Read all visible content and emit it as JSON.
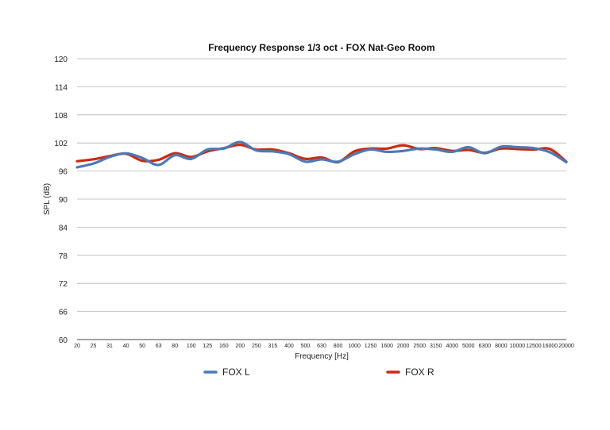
{
  "chart_data": {
    "type": "line",
    "title": "Frequency Response 1/3 oct - FOX Nat-Geo Room",
    "xlabel": "Frequency [Hz]",
    "ylabel": "SPL (dB)",
    "ylim": [
      60,
      120
    ],
    "yticks": [
      60,
      66,
      72,
      78,
      84,
      90,
      96,
      102,
      108,
      114,
      120
    ],
    "grid": true,
    "legend_position": "bottom",
    "x": [
      "20",
      "25",
      "31",
      "40",
      "50",
      "63",
      "80",
      "100",
      "125",
      "160",
      "200",
      "250",
      "315",
      "400",
      "500",
      "630",
      "800",
      "1000",
      "1250",
      "1600",
      "2000",
      "2500",
      "3150",
      "4000",
      "5000",
      "6300",
      "8000",
      "10000",
      "12500",
      "16000",
      "20000"
    ],
    "series": [
      {
        "name": "FOX L",
        "color": "#4a7ab7",
        "values": [
          96.8,
          97.6,
          99.0,
          99.8,
          98.8,
          97.3,
          99.4,
          98.6,
          100.6,
          100.8,
          102.2,
          100.4,
          100.2,
          99.6,
          98.0,
          98.5,
          98.0,
          99.6,
          100.6,
          100.1,
          100.3,
          100.8,
          100.6,
          100.1,
          101.1,
          99.8,
          101.2,
          101.1,
          100.9,
          100.0,
          97.9
        ]
      },
      {
        "name": "FOX R",
        "color": "#cc2a10",
        "values": [
          98.1,
          98.5,
          99.2,
          99.7,
          98.2,
          98.4,
          99.8,
          99.0,
          100.2,
          100.9,
          101.6,
          100.6,
          100.6,
          99.8,
          98.6,
          98.9,
          97.9,
          100.2,
          100.8,
          100.8,
          101.5,
          100.7,
          100.9,
          100.3,
          100.5,
          99.9,
          100.8,
          100.7,
          100.6,
          100.7,
          98.0
        ]
      }
    ]
  }
}
